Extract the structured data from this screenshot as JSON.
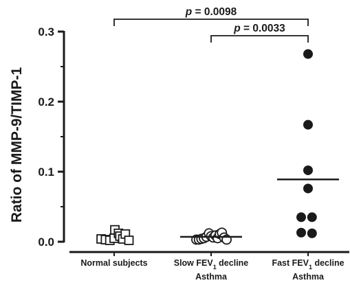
{
  "chart_data": {
    "type": "scatter",
    "ylabel": "Ratio of MMP-9/TIMP-1",
    "ylim": [
      0,
      0.3
    ],
    "yticks": [
      0.0,
      0.1,
      0.2,
      0.3
    ],
    "ytick_labels": [
      "0.0",
      "0.1",
      "0.2",
      "0.3"
    ],
    "grid": false,
    "categories": [
      {
        "line1": "Normal subjects",
        "line2": "",
        "sub": ""
      },
      {
        "line1": "Slow FEV",
        "sub": "1",
        "line1_after": " decline",
        "line2": "Asthma"
      },
      {
        "line1": "Fast FEV",
        "sub": "1",
        "line1_after": " decline",
        "line2": "Asthma"
      }
    ],
    "series": [
      {
        "category_index": 0,
        "marker": "open-square",
        "values": [
          0.004,
          0.003,
          0.002,
          0.005,
          0.017,
          0.012,
          0.008,
          0.004,
          0.011,
          0.002
        ],
        "offsets": [
          -0.36,
          -0.24,
          -0.12,
          0.0,
          0.02,
          0.12,
          0.16,
          0.24,
          0.31,
          0.41
        ],
        "mean": null
      },
      {
        "category_index": 1,
        "marker": "open-circle",
        "values": [
          0.003,
          0.003,
          0.004,
          0.005,
          0.007,
          0.012,
          0.008,
          0.006,
          0.009,
          0.005,
          0.011,
          0.013,
          0.006,
          0.003
        ],
        "offsets": [
          -0.41,
          -0.34,
          -0.27,
          -0.2,
          -0.13,
          -0.06,
          0.0,
          0.06,
          0.12,
          0.18,
          0.24,
          0.3,
          0.36,
          0.43
        ],
        "mean": 0.007
      },
      {
        "category_index": 2,
        "marker": "filled-circle",
        "values": [
          0.268,
          0.167,
          0.102,
          0.076,
          0.035,
          0.035,
          0.013,
          0.012
        ],
        "offsets": [
          0.0,
          0.0,
          0.0,
          0.0,
          -0.19,
          0.11,
          -0.19,
          0.11
        ],
        "mean": 0.089
      }
    ],
    "annotations": [
      {
        "from": 0,
        "to": 2,
        "label_prefix": "p",
        "label_value": " = 0.0098",
        "level": 2
      },
      {
        "from": 1,
        "to": 2,
        "label_prefix": "p",
        "label_value": " = 0.0033",
        "level": 1
      }
    ]
  }
}
